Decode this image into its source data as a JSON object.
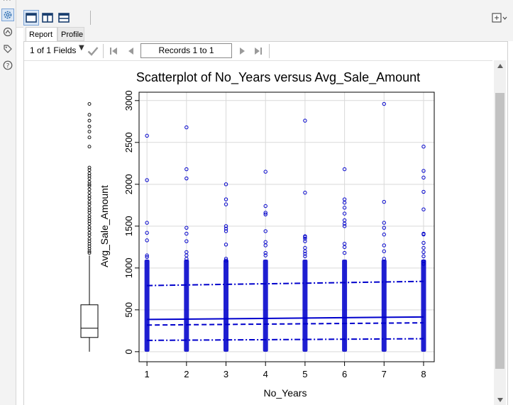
{
  "topbar": {
    "views": [
      {
        "name": "single-panel"
      },
      {
        "name": "split-vertical"
      },
      {
        "name": "split-horizontal"
      }
    ]
  },
  "tabs": [
    {
      "label": "Report",
      "active": true
    },
    {
      "label": "Profile",
      "active": false
    }
  ],
  "toolbar": {
    "fields_label": "1 of 1 Fields",
    "records_label": "Records 1 to 1"
  },
  "chart_data": {
    "type": "scatter",
    "title": "Scatterplot of No_Years versus Avg_Sale_Amount",
    "xlabel": "No_Years",
    "ylabel": "Avg_Sale_Amount",
    "xlim": [
      0.8,
      8.27
    ],
    "ylim": [
      -120,
      3100
    ],
    "xticks": [
      1,
      2,
      3,
      4,
      5,
      6,
      7,
      8
    ],
    "yticks": [
      0,
      500,
      1000,
      1500,
      2000,
      2500,
      3000
    ],
    "grid": true,
    "point_color": "#0000cc",
    "dense_column": {
      "from": 0,
      "to": 1100
    },
    "outliers": [
      {
        "x": 1,
        "y": [
          2580,
          2050,
          1540,
          1420,
          1330,
          1150,
          1130
        ]
      },
      {
        "x": 2,
        "y": [
          2680,
          2180,
          2070,
          1480,
          1410,
          1320,
          1190,
          1150,
          1110
        ]
      },
      {
        "x": 3,
        "y": [
          2000,
          1820,
          1760,
          1500,
          1470,
          1440,
          1280,
          1110,
          1090
        ]
      },
      {
        "x": 4,
        "y": [
          2150,
          1740,
          1660,
          1640,
          1440,
          1310,
          1270,
          1180,
          1150
        ]
      },
      {
        "x": 5,
        "y": [
          2760,
          1900,
          1380,
          1370,
          1350,
          1320,
          1240,
          1200,
          1170,
          1140
        ]
      },
      {
        "x": 6,
        "y": [
          2180,
          1820,
          1780,
          1720,
          1650,
          1570,
          1530,
          1500,
          1290,
          1250,
          1180
        ]
      },
      {
        "x": 7,
        "y": [
          2960,
          1790,
          1540,
          1480,
          1400,
          1270,
          1200,
          1110
        ]
      },
      {
        "x": 8,
        "y": [
          2450,
          2160,
          2080,
          1910,
          1700,
          1410,
          1400,
          1300,
          1240,
          1190,
          1140,
          1080,
          1050
        ]
      }
    ],
    "lines": [
      {
        "style": "solid",
        "y1": 385,
        "y2": 415
      },
      {
        "style": "dashed",
        "y1": 318,
        "y2": 345
      },
      {
        "style": "dashdot",
        "y1": 790,
        "y2": 840
      },
      {
        "style": "dashdot",
        "y1": 135,
        "y2": 155
      }
    ],
    "boxplot": {
      "median": 280,
      "q1": 170,
      "q3": 560,
      "whisker_low": 0,
      "whisker_high": 1150,
      "outliers": [
        2960,
        2830,
        2760,
        2690,
        2630,
        2560,
        2450,
        2200,
        2170,
        2130,
        2100,
        2070,
        2030,
        2000,
        1980,
        1940,
        1900,
        1860,
        1830,
        1790,
        1760,
        1720,
        1690,
        1660,
        1620,
        1590,
        1560,
        1530,
        1490,
        1460,
        1420,
        1390,
        1350,
        1320,
        1290,
        1260,
        1230,
        1200,
        1180
      ]
    }
  }
}
